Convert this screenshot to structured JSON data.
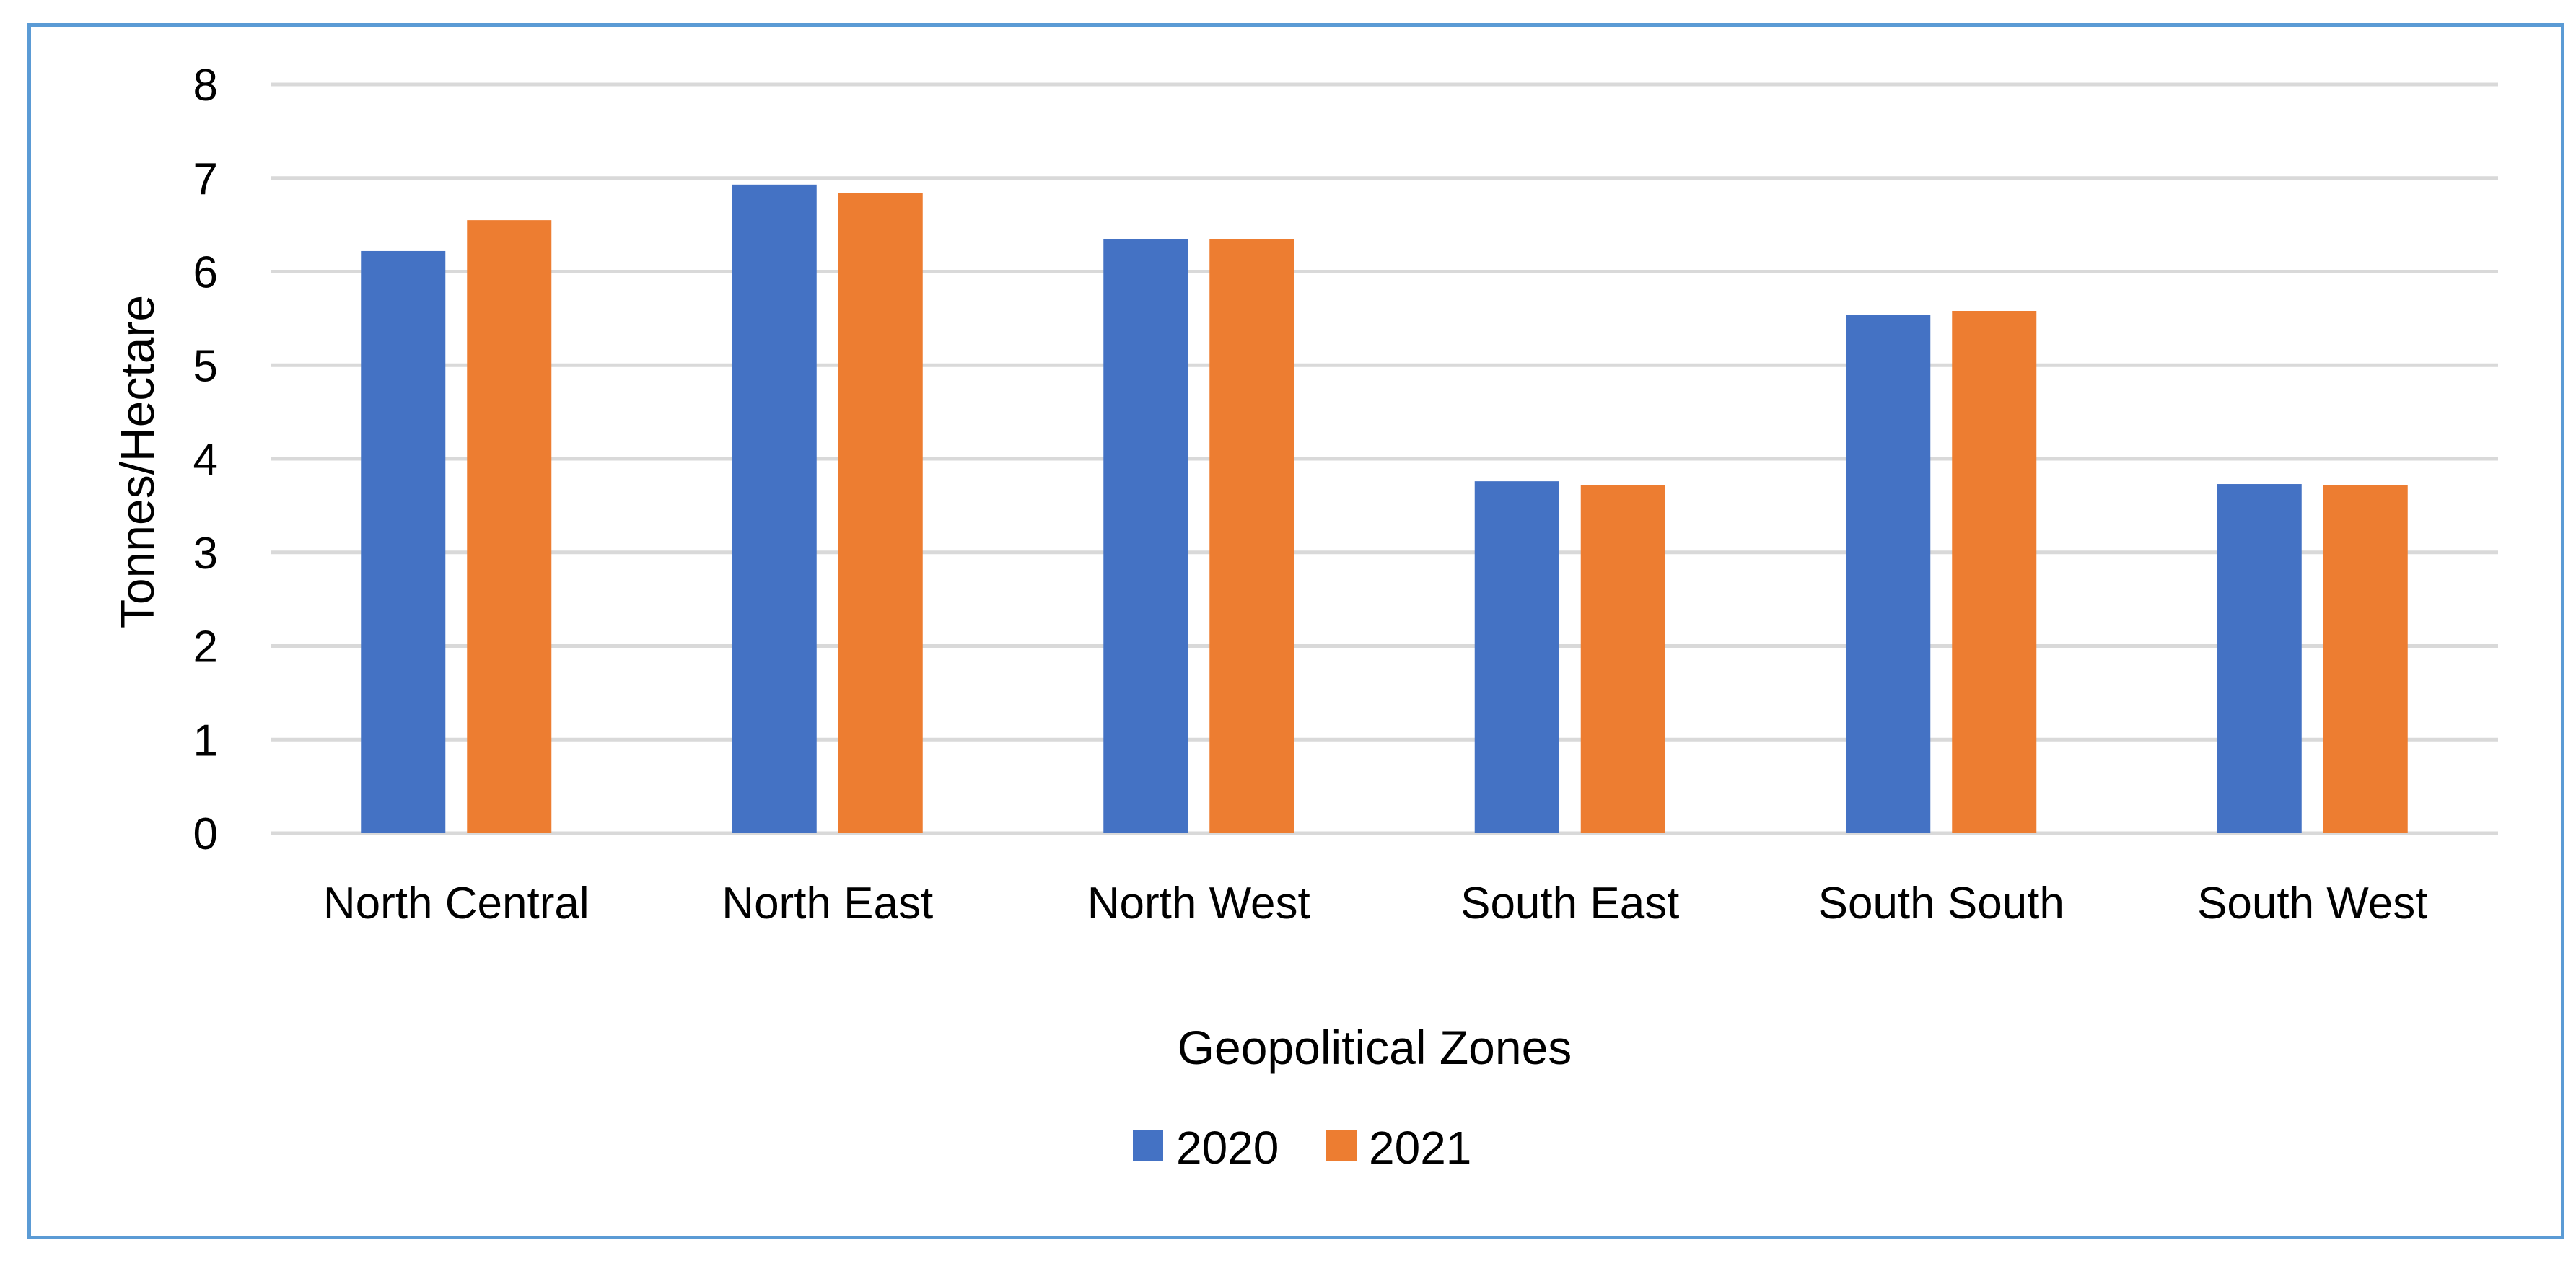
{
  "chart_data": {
    "type": "bar",
    "title": "",
    "xlabel": "Geopolitical Zones",
    "ylabel": "Tonnes/Hectare",
    "ylim": [
      0,
      8
    ],
    "yticks": [
      0,
      1,
      2,
      3,
      4,
      5,
      6,
      7,
      8
    ],
    "grid": true,
    "legend_position": "bottom",
    "categories": [
      "North Central",
      "North East",
      "North West",
      "South East",
      "South South",
      "South West"
    ],
    "series": [
      {
        "name": "2020",
        "color": "#4472c4",
        "values": [
          6.22,
          6.93,
          6.35,
          3.76,
          5.54,
          3.73
        ]
      },
      {
        "name": "2021",
        "color": "#ed7d31",
        "values": [
          6.55,
          6.84,
          6.35,
          3.72,
          5.58,
          3.72
        ]
      }
    ]
  },
  "colors": {
    "frame_border": "#5b9bd5",
    "gridline": "#d9d9d9"
  }
}
